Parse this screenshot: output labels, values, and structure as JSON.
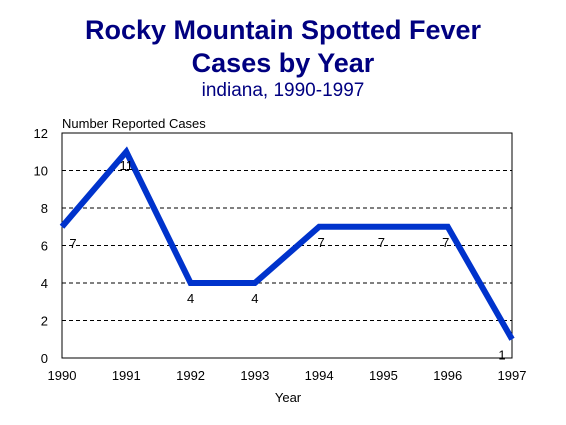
{
  "chart_data": {
    "type": "line",
    "title_lines": [
      "Rocky Mountain Spotted Fever",
      "Cases by Year"
    ],
    "subtitle": "indiana, 1990-1997",
    "xlabel": "Year",
    "ylabel": "Number Reported Cases",
    "categories": [
      "1990",
      "1991",
      "1992",
      "1993",
      "1994",
      "1995",
      "1996",
      "1997"
    ],
    "series": [
      {
        "values": [
          7,
          11,
          4,
          4,
          7,
          7,
          7,
          1
        ],
        "color": "#0033cc"
      }
    ],
    "data_labels": [
      "7",
      "11",
      "4",
      "4",
      "7",
      "7",
      "7",
      "1"
    ],
    "ylim": [
      0,
      12
    ],
    "yticks": [
      "0",
      "2",
      "4",
      "6",
      "8",
      "10",
      "12"
    ],
    "grid": "horizontal dashed",
    "legend": "none"
  }
}
